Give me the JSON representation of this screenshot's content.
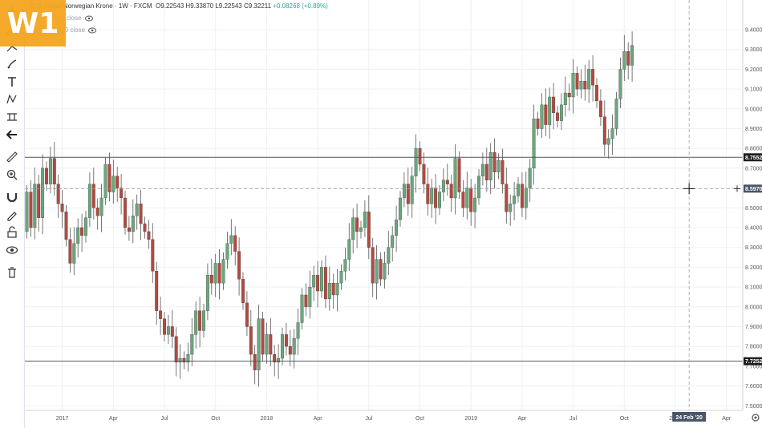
{
  "app": {
    "logo_text": "W1"
  },
  "legend": {
    "symbol": "U.S. Dollar/Norwegian Krone · 1W · FXCM",
    "open": "O9.22543",
    "high": "H9.33870",
    "low": "L9.22543",
    "close": "C9.32211",
    "change": "+0.08268 (+0.89%)",
    "ma1": "MA 50 close",
    "ma2": "MA 200 close"
  },
  "toolbar": {
    "items": [
      {
        "name": "crosshair-icon"
      },
      {
        "name": "trend-line-icon"
      },
      {
        "name": "pitchfork-icon"
      },
      {
        "name": "brush-icon"
      },
      {
        "name": "text-icon"
      },
      {
        "name": "pattern-icon"
      },
      {
        "name": "prediction-icon"
      },
      {
        "name": "back-arrow-icon"
      },
      {
        "name": "ruler-icon"
      },
      {
        "name": "zoom-in-icon"
      },
      {
        "name": "magnet-icon"
      },
      {
        "name": "lock-drawing-icon"
      },
      {
        "name": "unlock-icon"
      },
      {
        "name": "eye-icon"
      },
      {
        "name": "trash-icon"
      }
    ]
  },
  "chart_data": {
    "type": "candlestick",
    "y_ticks": [
      "9.4000",
      "9.3000",
      "9.2000",
      "9.1000",
      "9.0000",
      "8.9000",
      "8.8000",
      "8.7000",
      "8.6000",
      "8.5000",
      "8.4000",
      "8.3000",
      "8.2000",
      "8.1000",
      "8.0000",
      "7.9000",
      "7.8000",
      "7.7000",
      "7.6000",
      "7.5000"
    ],
    "y_tick_values": [
      9.4,
      9.3,
      9.2,
      9.1,
      9.0,
      8.9,
      8.8,
      8.7,
      8.6,
      8.5,
      8.4,
      8.3,
      8.2,
      8.1,
      8.0,
      7.9,
      7.8,
      7.7,
      7.6,
      7.5
    ],
    "ylim": [
      7.45,
      9.5
    ],
    "x_ticks": [
      "2017",
      "Apr",
      "Jul",
      "Oct",
      "2018",
      "Apr",
      "Jul",
      "Oct",
      "2019",
      "Apr",
      "Jul",
      "Oct",
      "2020",
      "Apr"
    ],
    "x_tick_weeks": [
      9,
      22,
      35,
      48,
      61,
      74,
      87,
      100,
      113,
      126,
      139,
      152,
      165,
      178
    ],
    "horizontal_lines": [
      {
        "label": "8.7552",
        "value": 8.7552
      },
      {
        "label": "7.7252",
        "value": 7.7252
      }
    ],
    "crosshair": {
      "label": "8.5970",
      "value": 8.597,
      "date_label": "24 Feb '20",
      "week": 168.5
    },
    "colors": {
      "up": "#6aa77c",
      "down": "#b5493f",
      "wick": "#555555",
      "level_line": "#555555"
    },
    "candles": [
      [
        8.38,
        8.58
      ],
      [
        8.58,
        8.4
      ],
      [
        8.4,
        8.62
      ],
      [
        8.62,
        8.45
      ],
      [
        8.45,
        8.7
      ],
      [
        8.7,
        8.62
      ],
      [
        8.62,
        8.75
      ],
      [
        8.75,
        8.62
      ],
      [
        8.62,
        8.52
      ],
      [
        8.52,
        8.48
      ],
      [
        8.48,
        8.34
      ],
      [
        8.34,
        8.22
      ],
      [
        8.22,
        8.32
      ],
      [
        8.32,
        8.4
      ],
      [
        8.4,
        8.36
      ],
      [
        8.36,
        8.45
      ],
      [
        8.45,
        8.62
      ],
      [
        8.62,
        8.5
      ],
      [
        8.5,
        8.46
      ],
      [
        8.46,
        8.55
      ],
      [
        8.55,
        8.72
      ],
      [
        8.72,
        8.58
      ],
      [
        8.58,
        8.66
      ],
      [
        8.66,
        8.6
      ],
      [
        8.6,
        8.55
      ],
      [
        8.55,
        8.4
      ],
      [
        8.4,
        8.38
      ],
      [
        8.38,
        8.46
      ],
      [
        8.46,
        8.52
      ],
      [
        8.52,
        8.42
      ],
      [
        8.42,
        8.38
      ],
      [
        8.38,
        8.34
      ],
      [
        8.34,
        8.18
      ],
      [
        8.18,
        7.98
      ],
      [
        7.98,
        7.94
      ],
      [
        7.94,
        7.86
      ],
      [
        7.86,
        7.9
      ],
      [
        7.9,
        7.85
      ],
      [
        7.85,
        7.72
      ],
      [
        7.72,
        7.74
      ],
      [
        7.74,
        7.72
      ],
      [
        7.72,
        7.76
      ],
      [
        7.76,
        7.86
      ],
      [
        7.86,
        7.98
      ],
      [
        7.98,
        7.88
      ],
      [
        7.88,
        7.98
      ],
      [
        7.98,
        8.16
      ],
      [
        8.16,
        8.12
      ],
      [
        8.12,
        8.22
      ],
      [
        8.22,
        8.12
      ],
      [
        8.12,
        8.24
      ],
      [
        8.24,
        8.32
      ],
      [
        8.32,
        8.36
      ],
      [
        8.36,
        8.28
      ],
      [
        8.28,
        8.14
      ],
      [
        8.14,
        8.02
      ],
      [
        8.02,
        7.9
      ],
      [
        7.9,
        7.76
      ],
      [
        7.76,
        7.68
      ],
      [
        7.68,
        7.94
      ],
      [
        7.94,
        7.76
      ],
      [
        7.76,
        7.86
      ],
      [
        7.86,
        7.76
      ],
      [
        7.76,
        7.72
      ],
      [
        7.72,
        7.74
      ],
      [
        7.74,
        7.86
      ],
      [
        7.86,
        7.8
      ],
      [
        7.8,
        7.76
      ],
      [
        7.76,
        7.84
      ],
      [
        7.84,
        7.92
      ],
      [
        7.92,
        8.06
      ],
      [
        8.06,
        8.0
      ],
      [
        8.0,
        8.1
      ],
      [
        8.1,
        8.16
      ],
      [
        8.16,
        8.08
      ],
      [
        8.08,
        8.2
      ],
      [
        8.2,
        8.04
      ],
      [
        8.04,
        8.12
      ],
      [
        8.12,
        8.06
      ],
      [
        8.06,
        8.12
      ],
      [
        8.12,
        8.18
      ],
      [
        8.18,
        8.24
      ],
      [
        8.24,
        8.34
      ],
      [
        8.34,
        8.45
      ],
      [
        8.45,
        8.38
      ],
      [
        8.38,
        8.4
      ],
      [
        8.4,
        8.48
      ],
      [
        8.48,
        8.3
      ],
      [
        8.3,
        8.12
      ],
      [
        8.12,
        8.24
      ],
      [
        8.24,
        8.14
      ],
      [
        8.14,
        8.22
      ],
      [
        8.22,
        8.3
      ],
      [
        8.3,
        8.36
      ],
      [
        8.36,
        8.44
      ],
      [
        8.44,
        8.55
      ],
      [
        8.55,
        8.62
      ],
      [
        8.62,
        8.52
      ],
      [
        8.52,
        8.66
      ],
      [
        8.66,
        8.8
      ],
      [
        8.8,
        8.72
      ],
      [
        8.72,
        8.62
      ],
      [
        8.62,
        8.52
      ],
      [
        8.52,
        8.6
      ],
      [
        8.6,
        8.5
      ],
      [
        8.5,
        8.58
      ],
      [
        8.58,
        8.64
      ],
      [
        8.64,
        8.62
      ],
      [
        8.62,
        8.55
      ],
      [
        8.55,
        8.75
      ],
      [
        8.75,
        8.58
      ],
      [
        8.58,
        8.5
      ],
      [
        8.5,
        8.6
      ],
      [
        8.6,
        8.48
      ],
      [
        8.48,
        8.55
      ],
      [
        8.55,
        8.66
      ],
      [
        8.66,
        8.72
      ],
      [
        8.72,
        8.64
      ],
      [
        8.64,
        8.78
      ],
      [
        8.78,
        8.68
      ],
      [
        8.68,
        8.74
      ],
      [
        8.74,
        8.62
      ],
      [
        8.62,
        8.48
      ],
      [
        8.48,
        8.52
      ],
      [
        8.52,
        8.56
      ],
      [
        8.56,
        8.62
      ],
      [
        8.62,
        8.5
      ],
      [
        8.5,
        8.6
      ],
      [
        8.6,
        8.7
      ],
      [
        8.7,
        8.95
      ],
      [
        8.95,
        8.9
      ],
      [
        8.9,
        9.02
      ],
      [
        9.02,
        8.92
      ],
      [
        8.92,
        9.06
      ],
      [
        9.06,
        8.98
      ],
      [
        8.98,
        8.94
      ],
      [
        8.94,
        9.02
      ],
      [
        9.02,
        9.08
      ],
      [
        9.08,
        9.06
      ],
      [
        9.06,
        9.18
      ],
      [
        9.18,
        9.1
      ],
      [
        9.1,
        9.14
      ],
      [
        9.14,
        9.1
      ],
      [
        9.1,
        9.2
      ],
      [
        9.2,
        9.12
      ],
      [
        9.12,
        9.04
      ],
      [
        9.04,
        8.96
      ],
      [
        8.96,
        8.82
      ],
      [
        8.82,
        8.85
      ],
      [
        8.85,
        8.9
      ],
      [
        8.9,
        9.05
      ],
      [
        9.05,
        9.2
      ],
      [
        9.2,
        9.29
      ],
      [
        9.29,
        9.22
      ],
      [
        9.22,
        9.32
      ]
    ]
  }
}
